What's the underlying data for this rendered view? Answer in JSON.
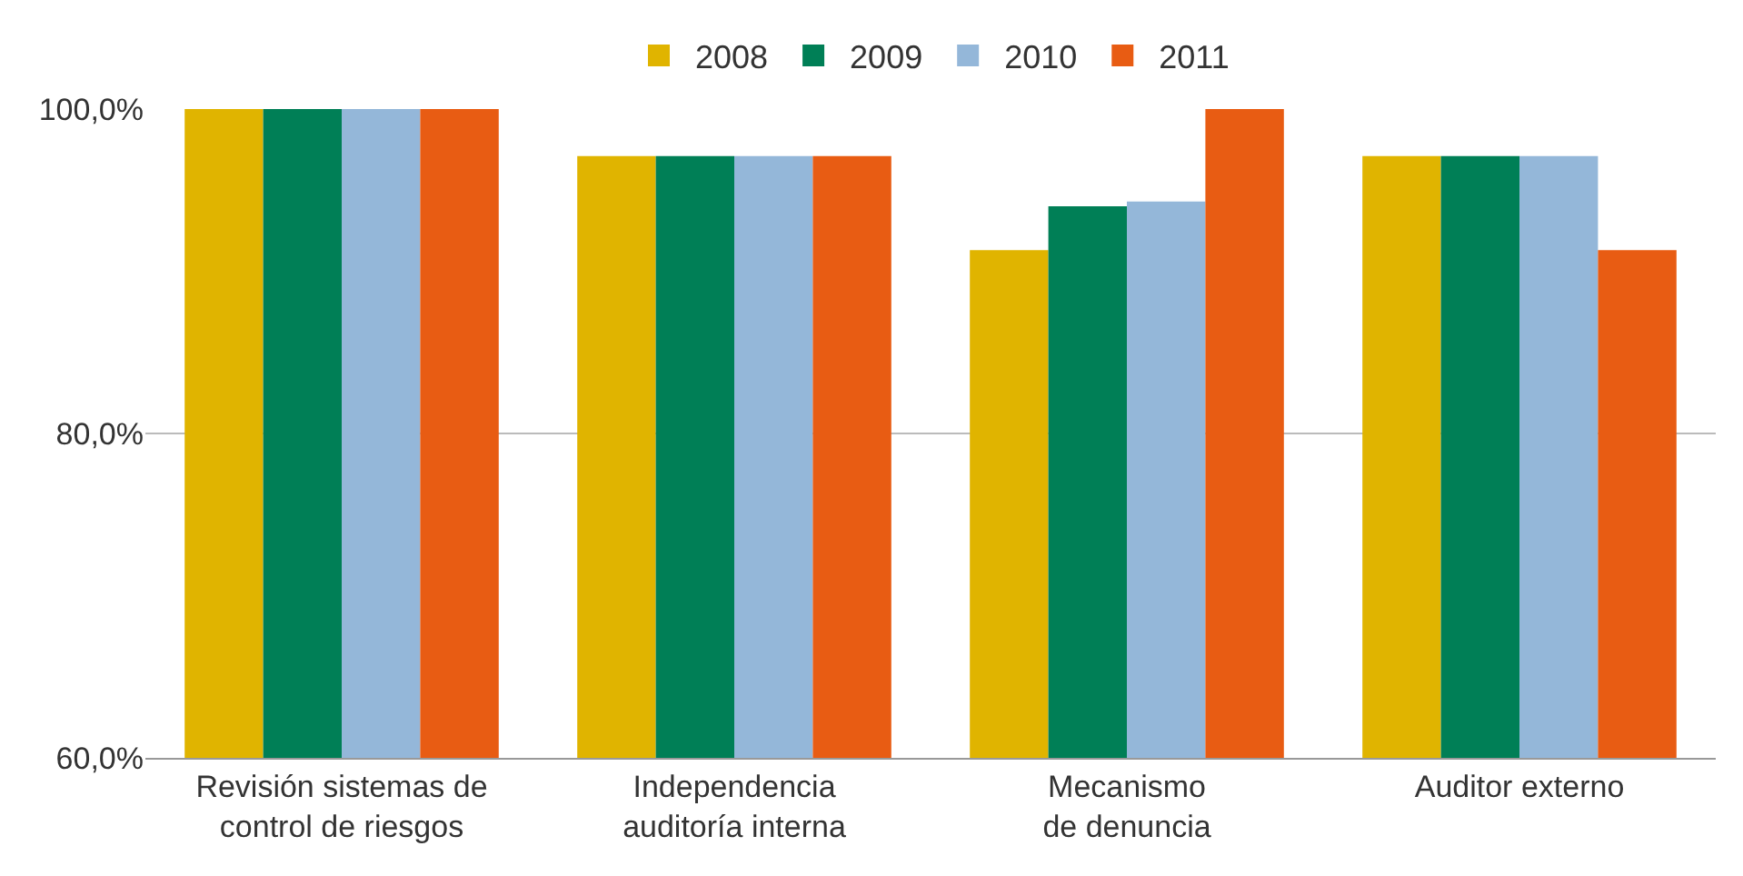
{
  "chart_data": {
    "type": "bar",
    "categories": [
      "Revisión sistemas de control de riesgos",
      "Independencia auditoría interna",
      "Mecanismo de denuncia",
      "Auditor externo"
    ],
    "series": [
      {
        "name": "2008",
        "color": "#e0b400",
        "values": [
          100.0,
          97.1,
          91.3,
          97.1
        ]
      },
      {
        "name": "2009",
        "color": "#007f56",
        "values": [
          100.0,
          97.1,
          94.0,
          97.1
        ]
      },
      {
        "name": "2010",
        "color": "#94b7d9",
        "values": [
          100.0,
          97.1,
          94.3,
          97.1
        ]
      },
      {
        "name": "2011",
        "color": "#e85c13",
        "values": [
          100.0,
          97.1,
          100.0,
          91.3
        ]
      }
    ],
    "ylim": [
      60,
      100
    ],
    "yticks": [
      {
        "value": 60,
        "label": "60,0%"
      },
      {
        "value": 80,
        "label": "80,0%"
      },
      {
        "value": 100,
        "label": "100,0%"
      }
    ],
    "grid": "y",
    "legend": "top"
  }
}
